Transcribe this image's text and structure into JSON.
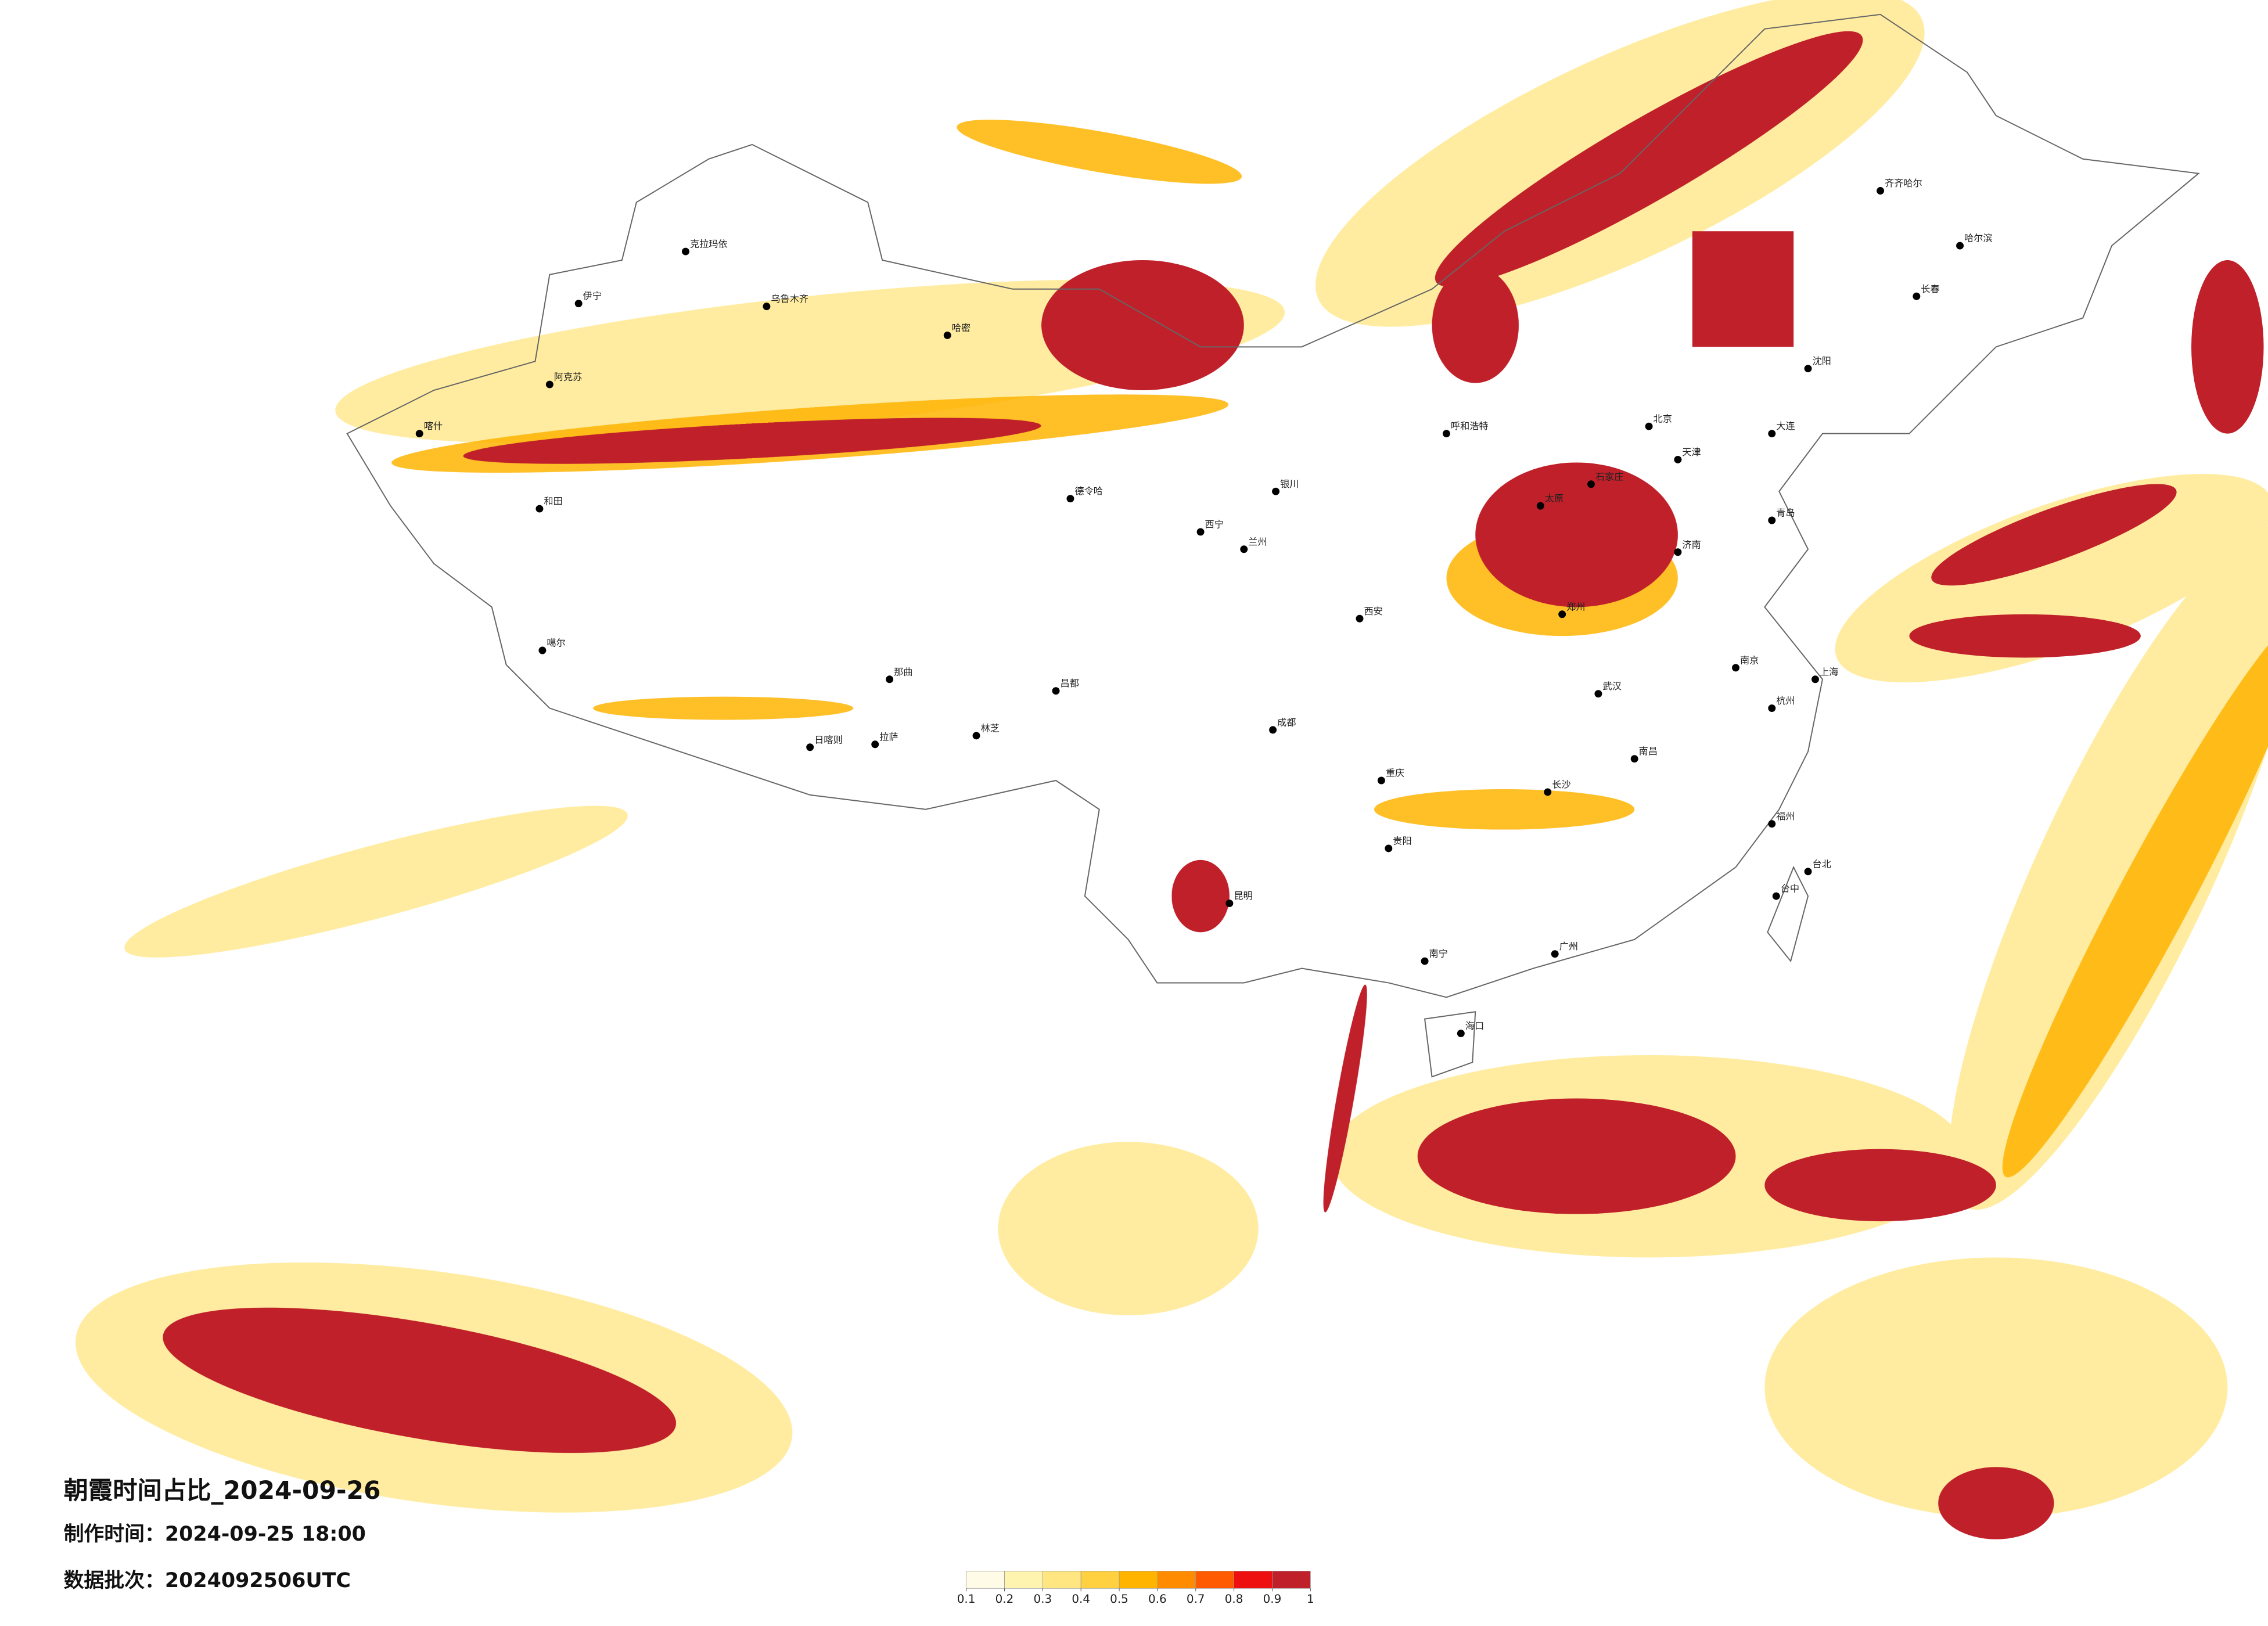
{
  "header": {
    "title": "朝霞时间占比_2024-09-26",
    "made_time": "制作时间：2024-09-25 18:00",
    "batch": "数据批次：2024092506UTC"
  },
  "legend": {
    "colors": [
      "#fffbe6",
      "#fff3b0",
      "#ffe680",
      "#ffd040",
      "#ffb400",
      "#ff8c00",
      "#ff5a00",
      "#ee1010",
      "#c0202a"
    ],
    "ticks": [
      0.1,
      0.2,
      0.3,
      0.4,
      0.5,
      0.6,
      0.7,
      0.8,
      0.9,
      1
    ]
  },
  "cities": [
    "克拉玛依",
    "伊宁",
    "阿克苏",
    "喀什",
    "和田",
    "乌鲁木齐",
    "哈密",
    "噶尔",
    "日喀则",
    "拉萨",
    "林芝",
    "那曲",
    "昌都",
    "德令哈",
    "西宁",
    "兰州",
    "银川",
    "呼和浩特",
    "北京",
    "天津",
    "石家庄",
    "太原",
    "济南",
    "郑州",
    "西安",
    "成都",
    "重庆",
    "武汉",
    "南京",
    "上海",
    "杭州",
    "长沙",
    "南昌",
    "福州",
    "贵阳",
    "昆明",
    "南宁",
    "广州",
    "海口",
    "台北",
    "台中",
    "沈阳",
    "长春",
    "哈尔滨",
    "齐齐哈尔",
    "大连",
    "青岛"
  ]
}
